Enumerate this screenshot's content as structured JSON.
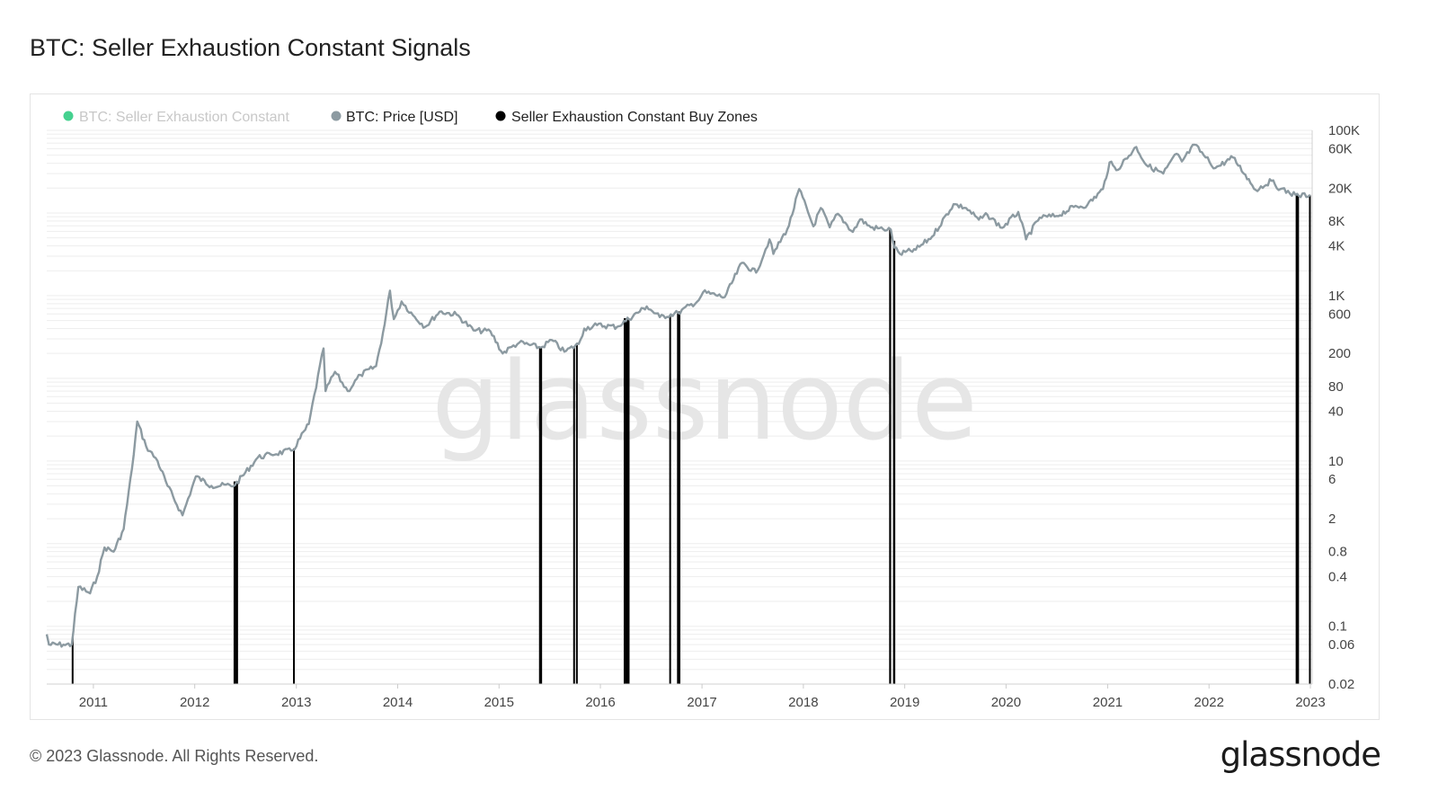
{
  "page": {
    "title": "BTC: Seller Exhaustion Constant Signals",
    "footer": "© 2023 Glassnode. All Rights Reserved.",
    "brand": "glassnode",
    "watermark": "glassnode"
  },
  "colors": {
    "price": "#8c9aa1",
    "sec": "#45d18f",
    "zones": "#000000",
    "grid": "#eeeeee"
  },
  "chart_data": {
    "type": "line",
    "title": "BTC: Seller Exhaustion Constant Signals",
    "y_scale": "log",
    "ylim": [
      0.02,
      100000
    ],
    "y_ticks": [
      "100K",
      "60K",
      "20K",
      "8K",
      "4K",
      "1K",
      "600",
      "200",
      "80",
      "40",
      "10",
      "6",
      "2",
      "0.8",
      "0.4",
      "0.1",
      "0.06",
      "0.02"
    ],
    "x_ticks": [
      "2011",
      "2012",
      "2013",
      "2014",
      "2015",
      "2016",
      "2017",
      "2018",
      "2019",
      "2020",
      "2021",
      "2022",
      "2023"
    ],
    "xlim": [
      "2010-07-17",
      "2023-01-01"
    ],
    "legend": [
      {
        "name": "BTC: Seller Exhaustion Constant",
        "color": "#45d18f",
        "hidden": true
      },
      {
        "name": "BTC: Price [USD]",
        "color": "#8c9aa1"
      },
      {
        "name": "Seller Exhaustion Constant Buy Zones",
        "color": "#000000"
      }
    ],
    "series": [
      {
        "name": "BTC: Price [USD]",
        "points": [
          [
            "2010-07-17",
            0.08
          ],
          [
            "2010-07-25",
            0.06
          ],
          [
            "2010-09-15",
            0.06
          ],
          [
            "2010-10-15",
            0.06
          ],
          [
            "2010-11-08",
            0.3
          ],
          [
            "2010-12-20",
            0.25
          ],
          [
            "2011-01-15",
            0.4
          ],
          [
            "2011-02-10",
            0.9
          ],
          [
            "2011-03-15",
            0.8
          ],
          [
            "2011-04-20",
            1.5
          ],
          [
            "2011-05-20",
            8
          ],
          [
            "2011-06-08",
            30
          ],
          [
            "2011-07-10",
            15
          ],
          [
            "2011-08-20",
            10
          ],
          [
            "2011-09-25",
            5
          ],
          [
            "2011-11-18",
            2.2
          ],
          [
            "2012-01-05",
            6.5
          ],
          [
            "2012-03-01",
            5
          ],
          [
            "2012-05-25",
            5.1
          ],
          [
            "2012-08-15",
            11
          ],
          [
            "2012-10-01",
            12
          ],
          [
            "2012-12-20",
            13.5
          ],
          [
            "2013-02-15",
            28
          ],
          [
            "2013-04-09",
            230
          ],
          [
            "2013-04-16",
            70
          ],
          [
            "2013-05-20",
            120
          ],
          [
            "2013-07-05",
            70
          ],
          [
            "2013-08-20",
            110
          ],
          [
            "2013-10-15",
            140
          ],
          [
            "2013-11-15",
            450
          ],
          [
            "2013-12-04",
            1150
          ],
          [
            "2013-12-18",
            520
          ],
          [
            "2014-01-15",
            850
          ],
          [
            "2014-02-25",
            580
          ],
          [
            "2014-04-10",
            420
          ],
          [
            "2014-06-01",
            640
          ],
          [
            "2014-08-01",
            590
          ],
          [
            "2014-10-01",
            380
          ],
          [
            "2014-12-01",
            370
          ],
          [
            "2015-01-14",
            200
          ],
          [
            "2015-02-15",
            240
          ],
          [
            "2015-03-15",
            270
          ],
          [
            "2015-05-31",
            235
          ],
          [
            "2015-07-10",
            290
          ],
          [
            "2015-08-24",
            210
          ],
          [
            "2015-10-15",
            260
          ],
          [
            "2015-11-04",
            400
          ],
          [
            "2015-12-20",
            440
          ],
          [
            "2016-03-01",
            420
          ],
          [
            "2016-06-16",
            740
          ],
          [
            "2016-08-02",
            550
          ],
          [
            "2016-10-07",
            620
          ],
          [
            "2016-12-20",
            880
          ],
          [
            "2017-01-05",
            1100
          ],
          [
            "2017-03-24",
            960
          ],
          [
            "2017-05-25",
            2500
          ],
          [
            "2017-07-15",
            1900
          ],
          [
            "2017-09-01",
            4800
          ],
          [
            "2017-09-15",
            3200
          ],
          [
            "2017-11-10",
            7000
          ],
          [
            "2017-12-17",
            19500
          ],
          [
            "2018-02-06",
            6900
          ],
          [
            "2018-03-05",
            11500
          ],
          [
            "2018-04-06",
            6700
          ],
          [
            "2018-05-05",
            9800
          ],
          [
            "2018-06-28",
            5900
          ],
          [
            "2018-07-25",
            8400
          ],
          [
            "2018-09-01",
            6700
          ],
          [
            "2018-10-15",
            6400
          ],
          [
            "2018-11-12",
            6300
          ],
          [
            "2018-11-25",
            3800
          ],
          [
            "2018-12-15",
            3200
          ],
          [
            "2019-02-10",
            3600
          ],
          [
            "2019-04-10",
            5200
          ],
          [
            "2019-06-26",
            12800
          ],
          [
            "2019-08-10",
            11500
          ],
          [
            "2019-09-25",
            8300
          ],
          [
            "2019-10-26",
            9500
          ],
          [
            "2019-12-18",
            6600
          ],
          [
            "2020-02-14",
            10300
          ],
          [
            "2020-03-13",
            4800
          ],
          [
            "2020-05-01",
            8800
          ],
          [
            "2020-07-01",
            9200
          ],
          [
            "2020-09-01",
            11800
          ],
          [
            "2020-10-20",
            12500
          ],
          [
            "2020-12-15",
            19500
          ],
          [
            "2021-01-08",
            41000
          ],
          [
            "2021-02-01",
            33000
          ],
          [
            "2021-04-14",
            63000
          ],
          [
            "2021-05-20",
            38000
          ],
          [
            "2021-07-20",
            30000
          ],
          [
            "2021-09-06",
            52000
          ],
          [
            "2021-09-25",
            42000
          ],
          [
            "2021-11-10",
            67000
          ],
          [
            "2021-12-20",
            47000
          ],
          [
            "2022-01-24",
            35000
          ],
          [
            "2022-03-28",
            47000
          ],
          [
            "2022-05-12",
            29000
          ],
          [
            "2022-06-18",
            19000
          ],
          [
            "2022-08-14",
            24500
          ],
          [
            "2022-09-15",
            19500
          ],
          [
            "2022-11-09",
            16500
          ],
          [
            "2022-11-20",
            16200
          ],
          [
            "2022-12-31",
            16550
          ]
        ]
      }
    ],
    "buy_zones": [
      {
        "start": "2010-10-15",
        "end": "2010-10-18"
      },
      {
        "start": "2012-05-20",
        "end": "2012-06-05"
      },
      {
        "start": "2012-12-20",
        "end": "2012-12-24"
      },
      {
        "start": "2015-05-25",
        "end": "2015-06-05"
      },
      {
        "start": "2015-09-25",
        "end": "2015-09-28"
      },
      {
        "start": "2015-10-05",
        "end": "2015-10-08"
      },
      {
        "start": "2016-03-25",
        "end": "2016-04-15"
      },
      {
        "start": "2016-09-05",
        "end": "2016-09-08"
      },
      {
        "start": "2016-10-03",
        "end": "2016-10-15"
      },
      {
        "start": "2018-11-06",
        "end": "2018-11-13"
      },
      {
        "start": "2018-11-20",
        "end": "2018-11-28"
      },
      {
        "start": "2022-11-09",
        "end": "2022-11-21"
      },
      {
        "start": "2022-12-27",
        "end": "2022-12-31"
      }
    ]
  }
}
